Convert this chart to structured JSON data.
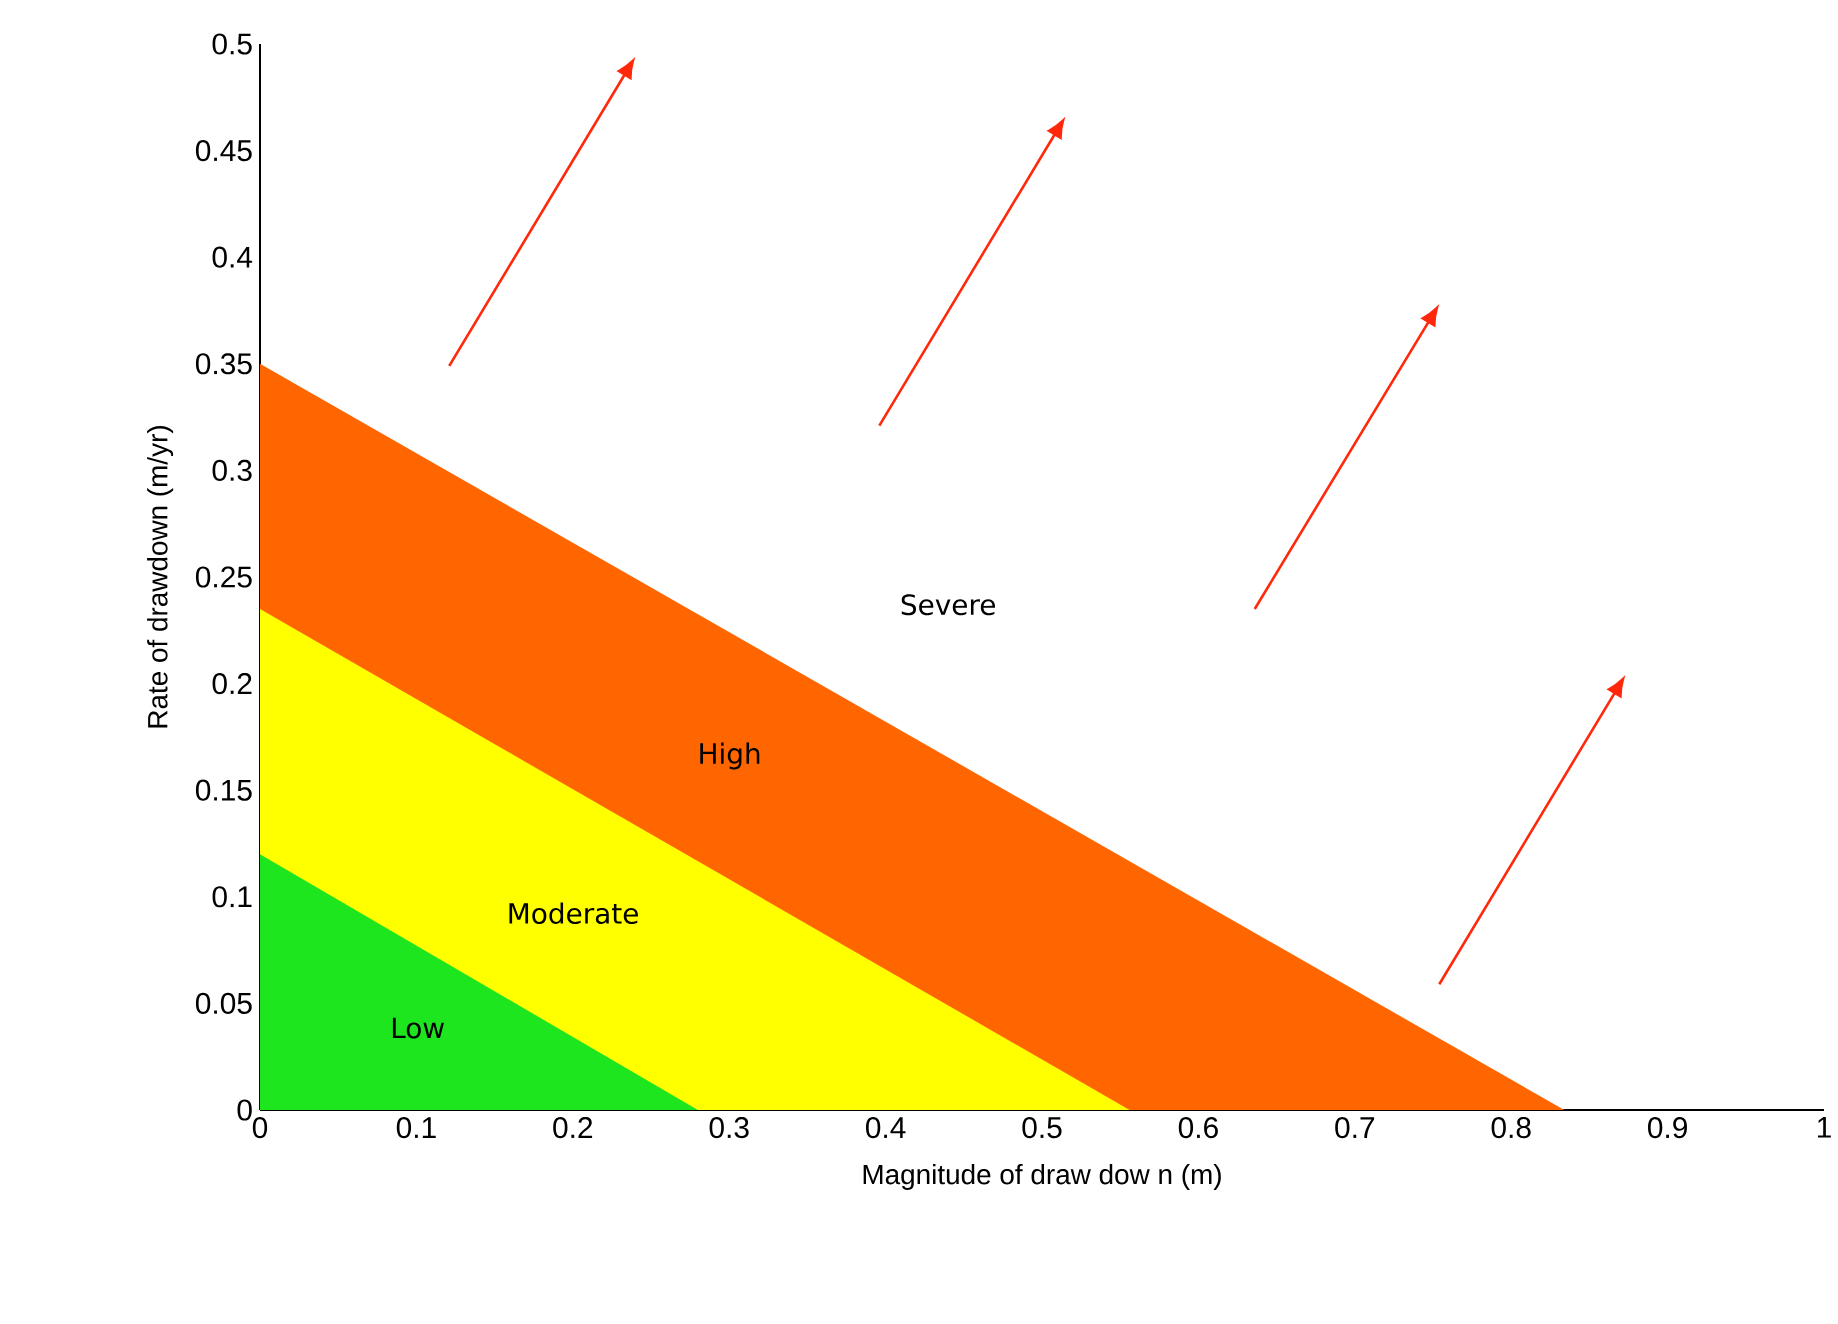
{
  "chart_data": {
    "type": "area",
    "xlabel": "Magnitude of draw dow n (m)",
    "ylabel": "Rate of drawdown (m/yr)",
    "xlim": [
      0,
      1
    ],
    "xticks": [
      0,
      0.1,
      0.2,
      0.3,
      0.4,
      0.5,
      0.6,
      0.7,
      0.8,
      0.9,
      1
    ],
    "ylim": [
      0,
      0.5
    ],
    "yticks": [
      0,
      0.05,
      0.1,
      0.15,
      0.2,
      0.25,
      0.3,
      0.35,
      0.4,
      0.45,
      0.5
    ],
    "grid": false,
    "series": [
      {
        "name": "Low",
        "color": "#1ee61e",
        "x": [
          0,
          0.28
        ],
        "values": [
          0.12,
          0
        ]
      },
      {
        "name": "Moderate",
        "color": "#ffff00",
        "x": [
          0,
          0.556
        ],
        "values": [
          0.235,
          0
        ]
      },
      {
        "name": "High",
        "color": "#ff6600",
        "x": [
          0,
          0.834
        ],
        "values": [
          0.35,
          0
        ]
      }
    ],
    "annotations": [
      "Severe"
    ]
  }
}
